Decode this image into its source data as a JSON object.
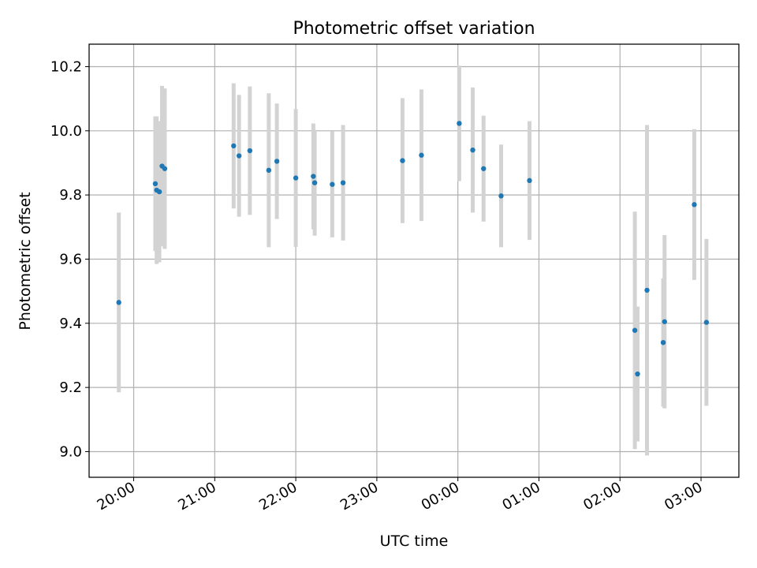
{
  "chart_data": {
    "type": "scatter",
    "title": "Photometric offset variation",
    "xlabel": "UTC time",
    "ylabel": "Photometric offset",
    "grid": true,
    "x_axis_type": "time",
    "x_ticks": [
      "20:00",
      "21:00",
      "22:00",
      "23:00",
      "00:00",
      "01:00",
      "02:00",
      "03:00"
    ],
    "y_ticks": [
      "9.0",
      "9.2",
      "9.4",
      "9.6",
      "9.8",
      "10.0",
      "10.2"
    ],
    "ylim": [
      8.92,
      10.27
    ],
    "xlim": [
      "19:27",
      "03:28"
    ],
    "colors": {
      "points": "#1f77b4",
      "errorbars": "#d3d3d3",
      "grid": "#b0b0b0"
    },
    "points": [
      {
        "time": "19:49",
        "y": 9.465,
        "yerr": 0.28
      },
      {
        "time": "20:16",
        "y": 9.835,
        "yerr": 0.21
      },
      {
        "time": "20:17",
        "y": 9.815,
        "yerr": 0.23
      },
      {
        "time": "20:19",
        "y": 9.81,
        "yerr": 0.22
      },
      {
        "time": "20:21",
        "y": 9.89,
        "yerr": 0.25
      },
      {
        "time": "20:23",
        "y": 9.882,
        "yerr": 0.25
      },
      {
        "time": "21:14",
        "y": 9.953,
        "yerr": 0.195
      },
      {
        "time": "21:18",
        "y": 9.922,
        "yerr": 0.19
      },
      {
        "time": "21:26",
        "y": 9.938,
        "yerr": 0.2
      },
      {
        "time": "21:40",
        "y": 9.877,
        "yerr": 0.24
      },
      {
        "time": "21:46",
        "y": 9.905,
        "yerr": 0.18
      },
      {
        "time": "22:00",
        "y": 9.853,
        "yerr": 0.215
      },
      {
        "time": "22:13",
        "y": 9.858,
        "yerr": 0.165
      },
      {
        "time": "22:14",
        "y": 9.838,
        "yerr": 0.165
      },
      {
        "time": "22:27",
        "y": 9.833,
        "yerr": 0.165
      },
      {
        "time": "22:35",
        "y": 9.838,
        "yerr": 0.18
      },
      {
        "time": "23:19",
        "y": 9.907,
        "yerr": 0.195
      },
      {
        "time": "23:33",
        "y": 9.924,
        "yerr": 0.205
      },
      {
        "time": "00:01",
        "y": 10.023,
        "yerr": 0.18
      },
      {
        "time": "00:11",
        "y": 9.94,
        "yerr": 0.195
      },
      {
        "time": "00:19",
        "y": 9.882,
        "yerr": 0.165
      },
      {
        "time": "00:32",
        "y": 9.797,
        "yerr": 0.16
      },
      {
        "time": "00:53",
        "y": 9.845,
        "yerr": 0.185
      },
      {
        "time": "02:11",
        "y": 9.378,
        "yerr": 0.37
      },
      {
        "time": "02:13",
        "y": 9.242,
        "yerr": 0.21
      },
      {
        "time": "02:20",
        "y": 9.503,
        "yerr": 0.515
      },
      {
        "time": "02:32",
        "y": 9.34,
        "yerr": 0.2
      },
      {
        "time": "02:33",
        "y": 9.405,
        "yerr": 0.27
      },
      {
        "time": "02:55",
        "y": 9.77,
        "yerr": 0.235
      },
      {
        "time": "03:04",
        "y": 9.403,
        "yerr": 0.26
      }
    ]
  }
}
